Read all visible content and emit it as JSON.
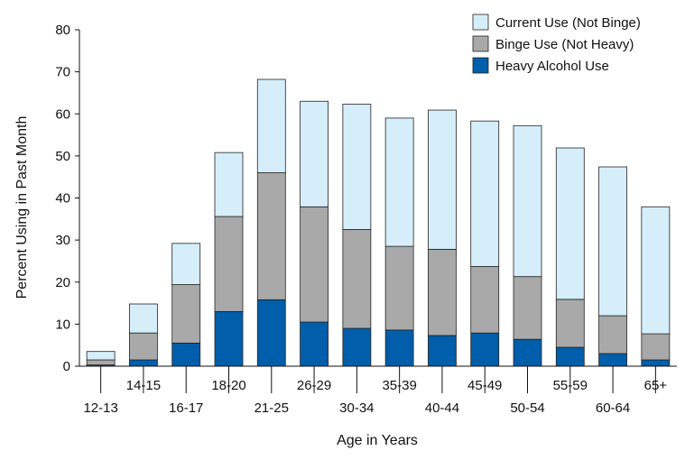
{
  "chart_data": {
    "type": "bar",
    "stacked": true,
    "categories": [
      "12-13",
      "14-15",
      "16-17",
      "18-20",
      "21-25",
      "26-29",
      "30-34",
      "35-39",
      "40-44",
      "45-49",
      "50-54",
      "55-59",
      "60-64",
      "65+"
    ],
    "series": [
      {
        "name": "Heavy Alcohol Use",
        "color": "#005eaa",
        "values": [
          0.3,
          1.5,
          5.5,
          13.0,
          15.8,
          10.5,
          9.0,
          8.6,
          7.3,
          7.9,
          6.4,
          4.5,
          3.0,
          1.5
        ]
      },
      {
        "name": "Binge Use (Not Heavy)",
        "color": "#a9a9a9",
        "values": [
          1.2,
          6.4,
          13.9,
          22.6,
          30.2,
          27.4,
          23.5,
          19.9,
          20.5,
          15.8,
          14.9,
          11.4,
          9.0,
          6.2
        ]
      },
      {
        "name": "Current Use (Not Binge)",
        "color": "#d5eefa",
        "values": [
          2.0,
          6.9,
          9.8,
          15.2,
          22.2,
          25.1,
          29.8,
          30.5,
          33.1,
          34.6,
          35.9,
          36.0,
          35.4,
          30.2
        ]
      }
    ],
    "xlabel": "Age in Years",
    "ylabel": "Percent Using in Past Month",
    "ylim": [
      0,
      80
    ],
    "yticks": [
      0,
      10,
      20,
      30,
      40,
      50,
      60,
      70,
      80
    ],
    "legend_position": "top-right",
    "legend_order": [
      2,
      1,
      0
    ],
    "grid": false
  }
}
